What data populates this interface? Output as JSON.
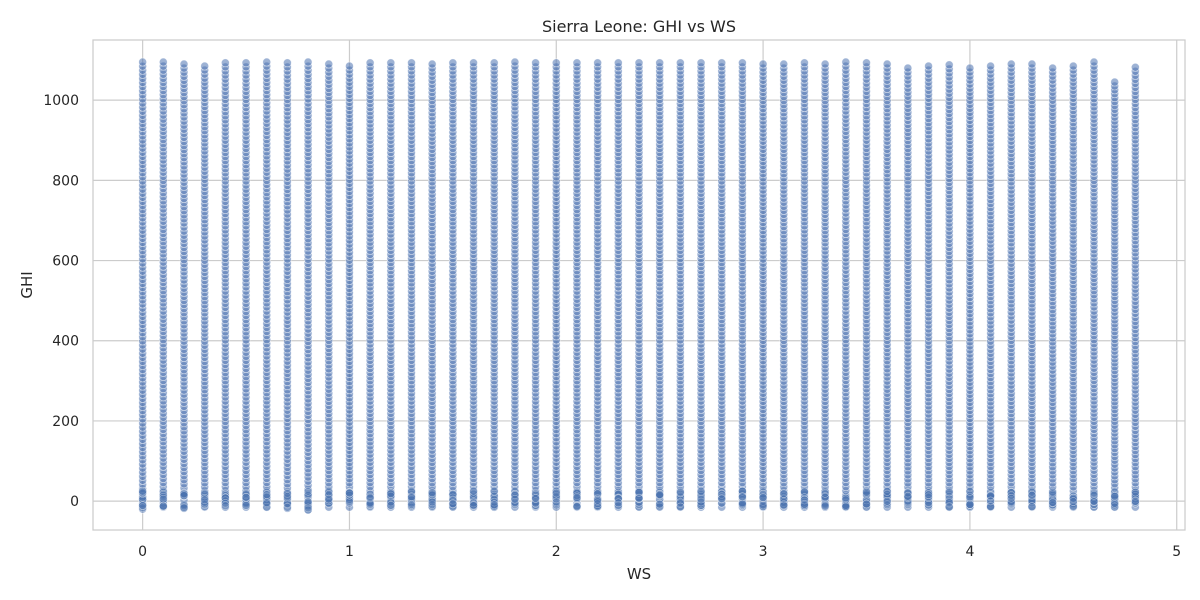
{
  "chart_data": {
    "type": "scatter",
    "title": "Sierra Leone: GHI vs WS",
    "xlabel": "WS",
    "ylabel": "GHI",
    "xlim": [
      -0.24,
      5.04
    ],
    "ylim": [
      -72,
      1150
    ],
    "xticks": [
      0,
      1,
      2,
      3,
      4,
      5
    ],
    "xtick_labels": [
      "0",
      "1",
      "2",
      "3",
      "4",
      "5"
    ],
    "yticks": [
      0,
      200,
      400,
      600,
      800,
      1000
    ],
    "ytick_labels": [
      "0",
      "200",
      "400",
      "600",
      "800",
      "1000"
    ],
    "grid": true,
    "point_color": "#4c72b0",
    "ws_columns": [
      0.0,
      0.1,
      0.2,
      0.3,
      0.4,
      0.5,
      0.6,
      0.7,
      0.8,
      0.9,
      1.0,
      1.1,
      1.2,
      1.3,
      1.4,
      1.5,
      1.6,
      1.7,
      1.8,
      1.9,
      2.0,
      2.1,
      2.2,
      2.3,
      2.4,
      2.5,
      2.6,
      2.7,
      2.8,
      2.9,
      3.0,
      3.1,
      3.2,
      3.3,
      3.4,
      3.5,
      3.6,
      3.7,
      3.8,
      3.9,
      4.0,
      4.1,
      4.2,
      4.3,
      4.4,
      4.5,
      4.6,
      4.7,
      4.8
    ],
    "ghi_min": [
      -20,
      -15,
      -18,
      -15,
      -15,
      -15,
      -15,
      -18,
      -22,
      -15,
      -15,
      -15,
      -15,
      -15,
      -15,
      -15,
      -15,
      -15,
      -15,
      -15,
      -15,
      -15,
      -15,
      -15,
      -15,
      -15,
      -15,
      -15,
      -15,
      -15,
      -15,
      -15,
      -15,
      -15,
      -15,
      -15,
      -15,
      -15,
      -15,
      -15,
      -15,
      -15,
      -15,
      -15,
      -15,
      -15,
      -15,
      -15,
      -15
    ],
    "ghi_max": [
      1095,
      1095,
      1090,
      1085,
      1093,
      1093,
      1095,
      1093,
      1095,
      1090,
      1085,
      1093,
      1093,
      1093,
      1090,
      1093,
      1093,
      1093,
      1095,
      1093,
      1093,
      1093,
      1093,
      1093,
      1093,
      1093,
      1093,
      1093,
      1093,
      1093,
      1090,
      1090,
      1093,
      1090,
      1095,
      1093,
      1090,
      1080,
      1085,
      1088,
      1080,
      1085,
      1090,
      1090,
      1080,
      1085,
      1095,
      1045,
      1082
    ]
  }
}
